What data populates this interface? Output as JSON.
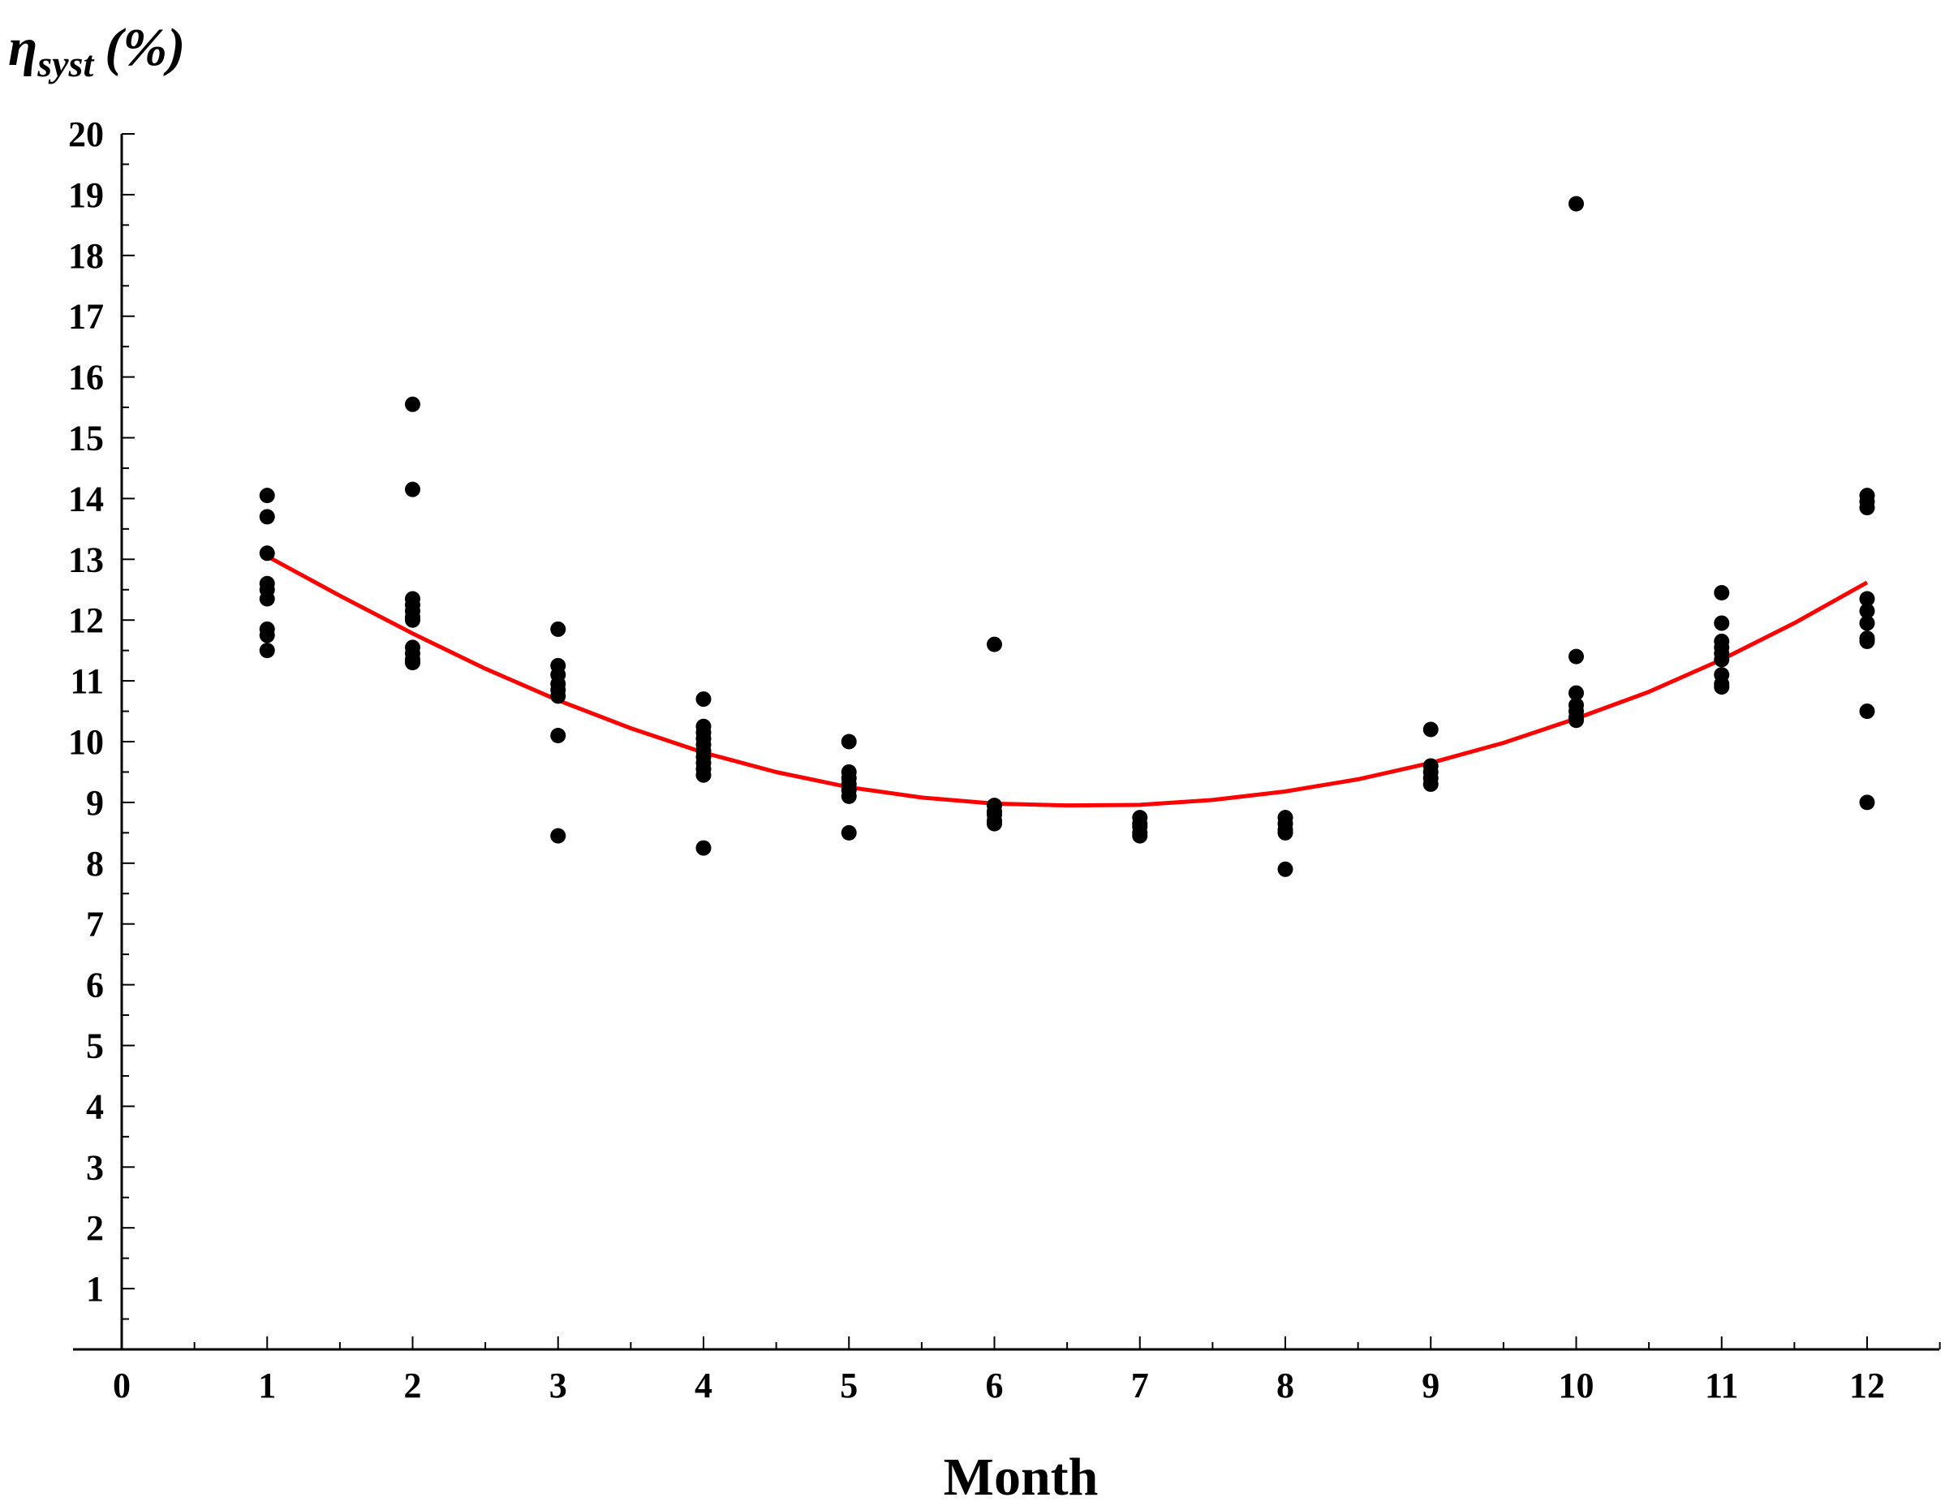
{
  "chart_data": {
    "type": "scatter",
    "title": "",
    "xlabel": "Month",
    "ylabel": {
      "symbol": "η",
      "subscript": "syst",
      "unit": "(%)"
    },
    "xlim": [
      0,
      12.5
    ],
    "ylim": [
      0,
      20
    ],
    "x_ticks": [
      "0",
      "1",
      "2",
      "3",
      "4",
      "5",
      "6",
      "7",
      "8",
      "9",
      "10",
      "11",
      "12"
    ],
    "y_ticks": [
      "1",
      "2",
      "3",
      "4",
      "5",
      "6",
      "7",
      "8",
      "9",
      "10",
      "11",
      "12",
      "13",
      "14",
      "15",
      "16",
      "17",
      "18",
      "19",
      "20"
    ],
    "grid": false,
    "point_color": "#000000",
    "curve_color": "#ff0000",
    "points": [
      {
        "x": 1,
        "y": 14.05
      },
      {
        "x": 1,
        "y": 13.7
      },
      {
        "x": 1,
        "y": 13.1
      },
      {
        "x": 1,
        "y": 12.6
      },
      {
        "x": 1,
        "y": 12.5
      },
      {
        "x": 1,
        "y": 12.35
      },
      {
        "x": 1,
        "y": 11.85
      },
      {
        "x": 1,
        "y": 11.75
      },
      {
        "x": 1,
        "y": 11.5
      },
      {
        "x": 2,
        "y": 15.55
      },
      {
        "x": 2,
        "y": 14.15
      },
      {
        "x": 2,
        "y": 12.35
      },
      {
        "x": 2,
        "y": 12.25
      },
      {
        "x": 2,
        "y": 12.15
      },
      {
        "x": 2,
        "y": 12.05
      },
      {
        "x": 2,
        "y": 12.0
      },
      {
        "x": 2,
        "y": 11.55
      },
      {
        "x": 2,
        "y": 11.45
      },
      {
        "x": 2,
        "y": 11.35
      },
      {
        "x": 2,
        "y": 11.3
      },
      {
        "x": 3,
        "y": 11.85
      },
      {
        "x": 3,
        "y": 11.25
      },
      {
        "x": 3,
        "y": 11.1
      },
      {
        "x": 3,
        "y": 10.95
      },
      {
        "x": 3,
        "y": 10.85
      },
      {
        "x": 3,
        "y": 10.75
      },
      {
        "x": 3,
        "y": 10.1
      },
      {
        "x": 3,
        "y": 8.45
      },
      {
        "x": 4,
        "y": 10.7
      },
      {
        "x": 4,
        "y": 10.25
      },
      {
        "x": 4,
        "y": 10.15
      },
      {
        "x": 4,
        "y": 10.05
      },
      {
        "x": 4,
        "y": 9.95
      },
      {
        "x": 4,
        "y": 9.85
      },
      {
        "x": 4,
        "y": 9.75
      },
      {
        "x": 4,
        "y": 9.65
      },
      {
        "x": 4,
        "y": 9.55
      },
      {
        "x": 4,
        "y": 9.45
      },
      {
        "x": 4,
        "y": 8.25
      },
      {
        "x": 5,
        "y": 10.0
      },
      {
        "x": 5,
        "y": 9.5
      },
      {
        "x": 5,
        "y": 9.4
      },
      {
        "x": 5,
        "y": 9.3
      },
      {
        "x": 5,
        "y": 9.2
      },
      {
        "x": 5,
        "y": 9.1
      },
      {
        "x": 5,
        "y": 8.5
      },
      {
        "x": 6,
        "y": 11.6
      },
      {
        "x": 6,
        "y": 8.95
      },
      {
        "x": 6,
        "y": 8.85
      },
      {
        "x": 6,
        "y": 8.8
      },
      {
        "x": 6,
        "y": 8.7
      },
      {
        "x": 6,
        "y": 8.65
      },
      {
        "x": 7,
        "y": 8.75
      },
      {
        "x": 7,
        "y": 8.65
      },
      {
        "x": 7,
        "y": 8.6
      },
      {
        "x": 7,
        "y": 8.5
      },
      {
        "x": 7,
        "y": 8.45
      },
      {
        "x": 8,
        "y": 8.75
      },
      {
        "x": 8,
        "y": 8.65
      },
      {
        "x": 8,
        "y": 8.55
      },
      {
        "x": 8,
        "y": 8.5
      },
      {
        "x": 8,
        "y": 7.9
      },
      {
        "x": 9,
        "y": 10.2
      },
      {
        "x": 9,
        "y": 9.6
      },
      {
        "x": 9,
        "y": 9.5
      },
      {
        "x": 9,
        "y": 9.4
      },
      {
        "x": 9,
        "y": 9.3
      },
      {
        "x": 10,
        "y": 18.85
      },
      {
        "x": 10,
        "y": 11.4
      },
      {
        "x": 10,
        "y": 10.8
      },
      {
        "x": 10,
        "y": 10.6
      },
      {
        "x": 10,
        "y": 10.5
      },
      {
        "x": 10,
        "y": 10.4
      },
      {
        "x": 10,
        "y": 10.35
      },
      {
        "x": 11,
        "y": 12.45
      },
      {
        "x": 11,
        "y": 11.95
      },
      {
        "x": 11,
        "y": 11.65
      },
      {
        "x": 11,
        "y": 11.55
      },
      {
        "x": 11,
        "y": 11.45
      },
      {
        "x": 11,
        "y": 11.35
      },
      {
        "x": 11,
        "y": 11.1
      },
      {
        "x": 11,
        "y": 10.95
      },
      {
        "x": 11,
        "y": 10.9
      },
      {
        "x": 12,
        "y": 14.05
      },
      {
        "x": 12,
        "y": 13.95
      },
      {
        "x": 12,
        "y": 13.85
      },
      {
        "x": 12,
        "y": 12.35
      },
      {
        "x": 12,
        "y": 12.15
      },
      {
        "x": 12,
        "y": 11.95
      },
      {
        "x": 12,
        "y": 11.7
      },
      {
        "x": 12,
        "y": 11.65
      },
      {
        "x": 12,
        "y": 10.5
      },
      {
        "x": 12,
        "y": 9.0
      }
    ],
    "fit_curve": {
      "type": "quadratic",
      "x_range": [
        1,
        12
      ],
      "points": [
        {
          "x": 1,
          "y": 13.05
        },
        {
          "x": 1.5,
          "y": 12.4
        },
        {
          "x": 2,
          "y": 11.78
        },
        {
          "x": 2.5,
          "y": 11.2
        },
        {
          "x": 3,
          "y": 10.68
        },
        {
          "x": 3.5,
          "y": 10.22
        },
        {
          "x": 4,
          "y": 9.82
        },
        {
          "x": 4.5,
          "y": 9.5
        },
        {
          "x": 5,
          "y": 9.25
        },
        {
          "x": 5.5,
          "y": 9.08
        },
        {
          "x": 6,
          "y": 8.98
        },
        {
          "x": 6.5,
          "y": 8.95
        },
        {
          "x": 7,
          "y": 8.96
        },
        {
          "x": 7.5,
          "y": 9.04
        },
        {
          "x": 8,
          "y": 9.18
        },
        {
          "x": 8.5,
          "y": 9.38
        },
        {
          "x": 9,
          "y": 9.65
        },
        {
          "x": 9.5,
          "y": 9.98
        },
        {
          "x": 10,
          "y": 10.38
        },
        {
          "x": 10.5,
          "y": 10.82
        },
        {
          "x": 11,
          "y": 11.35
        },
        {
          "x": 11.5,
          "y": 11.95
        },
        {
          "x": 12,
          "y": 12.62
        }
      ]
    }
  }
}
